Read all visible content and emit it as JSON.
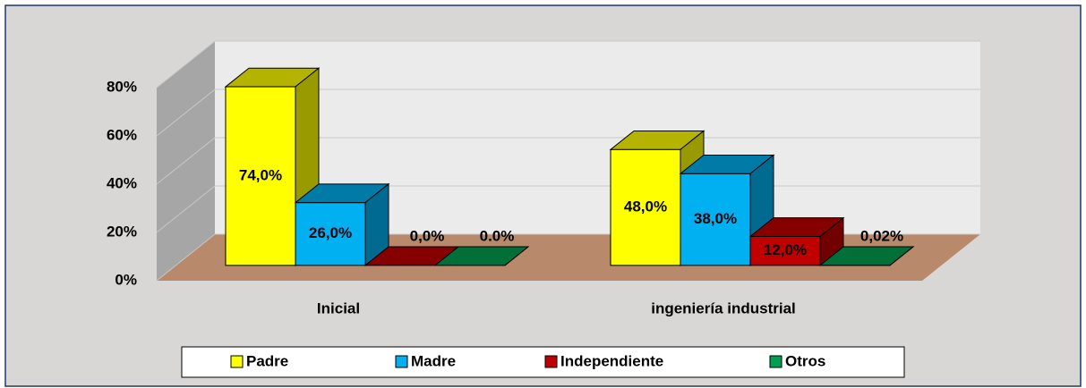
{
  "chart_data": {
    "type": "bar",
    "categories": [
      "Inicial",
      "ingeniería industrial"
    ],
    "series": [
      {
        "name": "Padre",
        "color": "#ffff00",
        "values": [
          74,
          48
        ],
        "value_labels": [
          "74,0%",
          "48,0%"
        ]
      },
      {
        "name": "Madre",
        "color": "#00b0f0",
        "values": [
          26,
          38
        ],
        "value_labels": [
          "26,0%",
          "38,0%"
        ]
      },
      {
        "name": "Independiente",
        "color": "#c00000",
        "values": [
          0,
          12
        ],
        "value_labels": [
          "0,0%",
          "12,0%"
        ]
      },
      {
        "name": "Otros",
        "color": "#00a050",
        "values": [
          0,
          0.02
        ],
        "value_labels": [
          "0.0%",
          "0,02%"
        ]
      }
    ],
    "ylim": [
      0,
      80
    ],
    "yticks": [
      {
        "value": 0,
        "label": "0%"
      },
      {
        "value": 20,
        "label": "20%"
      },
      {
        "value": 40,
        "label": "40%"
      },
      {
        "value": 60,
        "label": "60%"
      },
      {
        "value": 80,
        "label": "80%"
      }
    ],
    "grid": true,
    "legend": "bottom"
  }
}
